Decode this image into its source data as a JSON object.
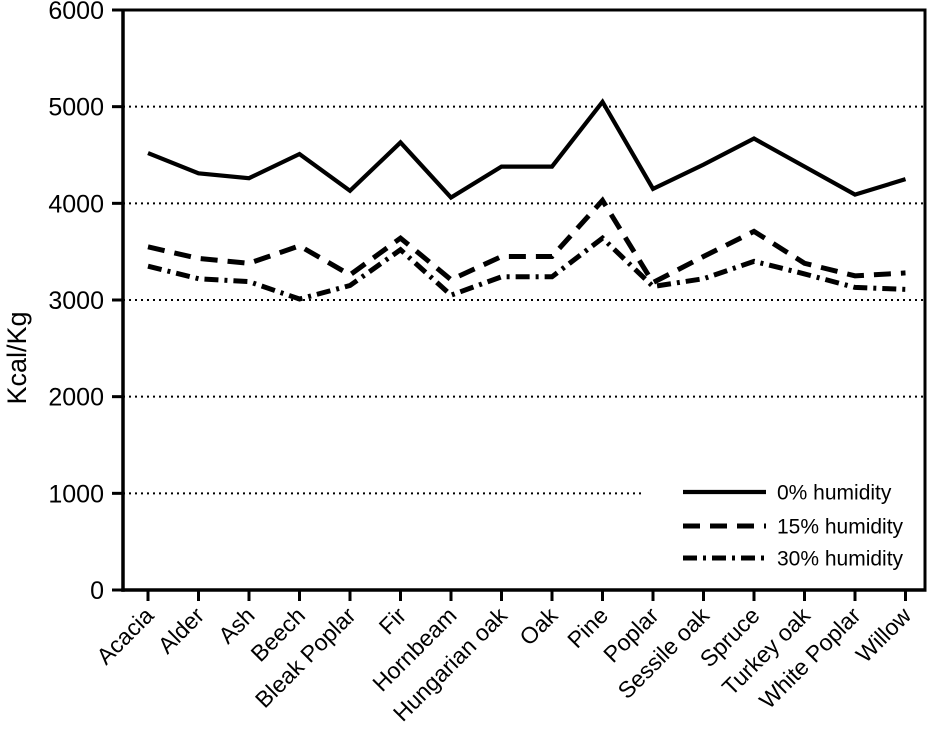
{
  "chart_data": {
    "type": "line",
    "title": "",
    "xlabel": "",
    "ylabel": "Kcal/Kg",
    "ylim": [
      0,
      6000
    ],
    "yticks": [
      0,
      1000,
      2000,
      3000,
      4000,
      5000,
      6000
    ],
    "grid": "horizontal-dotted",
    "legend_position": "inside-bottom-right",
    "categories": [
      "Acacia",
      "Alder",
      "Ash",
      "Beech",
      "Bleak Poplar",
      "Fir",
      "Hornbeam",
      "Hungarian oak",
      "Oak",
      "Pine",
      "Poplar",
      "Sessile oak",
      "Spruce",
      "Turkey oak",
      "White Poplar",
      "Willow"
    ],
    "series": [
      {
        "name": "0% humidity",
        "style": "solid",
        "values": [
          4520,
          4310,
          4260,
          4510,
          4130,
          4630,
          4060,
          4380,
          4380,
          5050,
          4150,
          4400,
          4670,
          4380,
          4090,
          4250
        ]
      },
      {
        "name": "15% humidity",
        "style": "dashed",
        "values": [
          3550,
          3430,
          3380,
          3560,
          3260,
          3640,
          3210,
          3450,
          3450,
          4030,
          3180,
          3450,
          3710,
          3380,
          3250,
          3280
        ]
      },
      {
        "name": "30% humidity",
        "style": "dashdot",
        "values": [
          3350,
          3220,
          3190,
          3010,
          3150,
          3520,
          3050,
          3240,
          3240,
          3640,
          3140,
          3220,
          3400,
          3270,
          3130,
          3110
        ]
      }
    ],
    "colors": {
      "line": "#000000",
      "grid": "#000000",
      "background": "#ffffff"
    }
  }
}
